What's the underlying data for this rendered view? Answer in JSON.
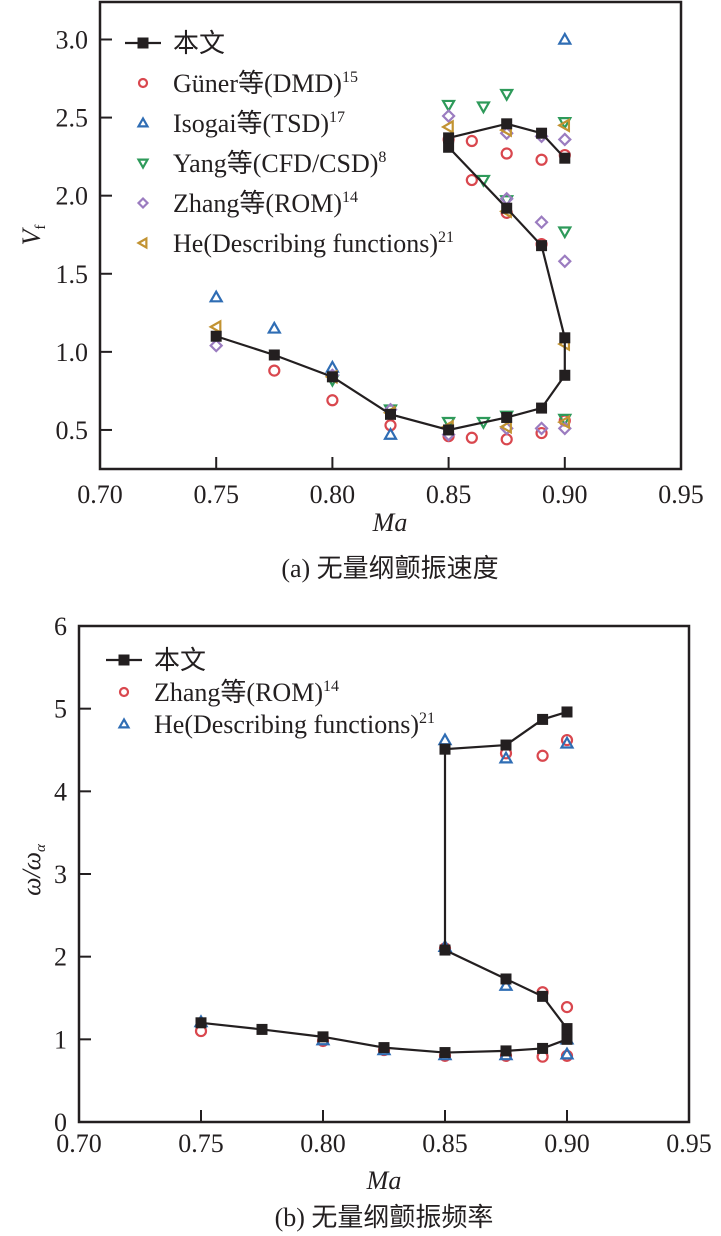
{
  "colors": {
    "main": "#231f20",
    "guner": "#d9474e",
    "isogai": "#2f6db4",
    "yang": "#2e9a5a",
    "zhang": "#9b7cc0",
    "he": "#c29332",
    "zhang_b": "#d9474e",
    "he_b": "#2f6db4"
  },
  "chart_data": [
    {
      "type": "scatter",
      "title": "(a) 无量纲颤振速度",
      "xlabel": "Ma",
      "ylabel": "V",
      "ylabel_sub": "f",
      "xlim": [
        0.7,
        0.95
      ],
      "ylim": [
        0.25,
        3.24
      ],
      "xticks": [
        "0.70",
        "0.75",
        "0.80",
        "0.85",
        "0.90",
        "0.95"
      ],
      "xtick_values": [
        0.7,
        0.75,
        0.8,
        0.85,
        0.9,
        0.95
      ],
      "yticks": [
        "0.5",
        "1.0",
        "1.5",
        "2.0",
        "2.5",
        "3.0"
      ],
      "ytick_values": [
        0.5,
        1.0,
        1.5,
        2.0,
        2.5,
        3.0
      ],
      "legend_position": "top-left",
      "series": [
        {
          "key": "main",
          "name": "本文",
          "sup": "",
          "marker": "square",
          "line": true,
          "segments": [
            [
              [
                0.75,
                1.1
              ],
              [
                0.775,
                0.98
              ],
              [
                0.8,
                0.84
              ],
              [
                0.825,
                0.6
              ],
              [
                0.85,
                0.5
              ],
              [
                0.875,
                0.58
              ],
              [
                0.89,
                0.64
              ],
              [
                0.9,
                0.85
              ],
              [
                0.9,
                1.09
              ],
              [
                0.89,
                1.68
              ],
              [
                0.875,
                1.92
              ],
              [
                0.85,
                2.31
              ]
            ],
            [
              [
                0.85,
                2.37
              ],
              [
                0.875,
                2.46
              ],
              [
                0.89,
                2.4
              ],
              [
                0.9,
                2.24
              ]
            ]
          ]
        },
        {
          "key": "guner",
          "name": "Güner等(DMD)",
          "sup": "15",
          "marker": "circle",
          "points": [
            [
              0.775,
              0.88
            ],
            [
              0.8,
              0.69
            ],
            [
              0.825,
              0.53
            ],
            [
              0.85,
              0.46
            ],
            [
              0.86,
              0.45
            ],
            [
              0.875,
              0.44
            ],
            [
              0.89,
              0.48
            ],
            [
              0.9,
              0.56
            ],
            [
              0.86,
              2.1
            ],
            [
              0.875,
              2.27
            ],
            [
              0.89,
              2.23
            ],
            [
              0.9,
              2.26
            ],
            [
              0.86,
              2.35
            ],
            [
              0.875,
              1.89
            ],
            [
              0.89,
              1.69
            ],
            [
              0.85,
              2.36
            ]
          ]
        },
        {
          "key": "isogai",
          "name": "Isogai等(TSD)",
          "sup": "17",
          "marker": "triangle-up",
          "points": [
            [
              0.75,
              1.35
            ],
            [
              0.775,
              1.15
            ],
            [
              0.8,
              0.9
            ],
            [
              0.825,
              0.47
            ],
            [
              0.9,
              3.0
            ]
          ]
        },
        {
          "key": "yang",
          "name": "Yang等(CFD/CSD)",
          "sup": "8",
          "marker": "triangle-down",
          "points": [
            [
              0.8,
              0.82
            ],
            [
              0.825,
              0.63
            ],
            [
              0.85,
              0.55
            ],
            [
              0.865,
              0.55
            ],
            [
              0.875,
              0.59
            ],
            [
              0.9,
              0.57
            ],
            [
              0.85,
              2.58
            ],
            [
              0.865,
              2.57
            ],
            [
              0.875,
              2.65
            ],
            [
              0.865,
              2.1
            ],
            [
              0.875,
              1.97
            ],
            [
              0.9,
              1.77
            ],
            [
              0.9,
              2.47
            ]
          ]
        },
        {
          "key": "zhang",
          "name": "Zhang等(ROM)",
          "sup": "14",
          "marker": "diamond",
          "points": [
            [
              0.75,
              1.04
            ],
            [
              0.8,
              0.85
            ],
            [
              0.825,
              0.63
            ],
            [
              0.85,
              0.47
            ],
            [
              0.875,
              0.51
            ],
            [
              0.89,
              0.51
            ],
            [
              0.9,
              0.51
            ],
            [
              0.85,
              2.51
            ],
            [
              0.875,
              2.4
            ],
            [
              0.89,
              2.38
            ],
            [
              0.9,
              2.36
            ],
            [
              0.875,
              1.98
            ],
            [
              0.89,
              1.83
            ],
            [
              0.9,
              1.58
            ]
          ]
        },
        {
          "key": "he",
          "name": "He(Describing functions)",
          "sup": "21",
          "marker": "triangle-left",
          "points": [
            [
              0.75,
              1.16
            ],
            [
              0.8,
              0.84
            ],
            [
              0.825,
              0.61
            ],
            [
              0.85,
              0.52
            ],
            [
              0.875,
              0.52
            ],
            [
              0.9,
              0.55
            ],
            [
              0.9,
              1.05
            ],
            [
              0.85,
              2.44
            ],
            [
              0.875,
              2.42
            ],
            [
              0.9,
              2.45
            ],
            [
              0.875,
              1.9
            ]
          ]
        }
      ]
    },
    {
      "type": "scatter",
      "title": "(b) 无量纲颤振频率",
      "xlabel": "Ma",
      "ylabel": "ω/ω",
      "ylabel_sub": "α",
      "xlim": [
        0.7,
        0.95
      ],
      "ylim": [
        0,
        6
      ],
      "xticks": [
        "0.70",
        "0.75",
        "0.80",
        "0.85",
        "0.90",
        "0.95"
      ],
      "xtick_values": [
        0.7,
        0.75,
        0.8,
        0.85,
        0.9,
        0.95
      ],
      "yticks": [
        "0",
        "1",
        "2",
        "3",
        "4",
        "5",
        "6"
      ],
      "ytick_values": [
        0,
        1,
        2,
        3,
        4,
        5,
        6
      ],
      "legend_position": "top-left",
      "series": [
        {
          "key": "main",
          "name": "本文",
          "sup": "",
          "marker": "square",
          "line": true,
          "segments": [
            [
              [
                0.75,
                1.2
              ],
              [
                0.775,
                1.12
              ],
              [
                0.8,
                1.03
              ],
              [
                0.825,
                0.9
              ],
              [
                0.85,
                0.84
              ],
              [
                0.875,
                0.86
              ],
              [
                0.89,
                0.89
              ],
              [
                0.9,
                1.0
              ],
              [
                0.9,
                1.13
              ],
              [
                0.89,
                1.52
              ],
              [
                0.875,
                1.73
              ],
              [
                0.85,
                2.08
              ],
              [
                0.85,
                4.51
              ],
              [
                0.875,
                4.56
              ],
              [
                0.89,
                4.87
              ],
              [
                0.9,
                4.96
              ]
            ]
          ]
        },
        {
          "key": "zhang_b",
          "name": "Zhang等(ROM)",
          "sup": "14",
          "marker": "circle",
          "points": [
            [
              0.75,
              1.1
            ],
            [
              0.8,
              0.98
            ],
            [
              0.825,
              0.87
            ],
            [
              0.85,
              0.8
            ],
            [
              0.875,
              0.8
            ],
            [
              0.89,
              0.79
            ],
            [
              0.9,
              0.8
            ],
            [
              0.89,
              1.57
            ],
            [
              0.9,
              1.39
            ],
            [
              0.875,
              4.46
            ],
            [
              0.89,
              4.43
            ],
            [
              0.9,
              4.62
            ],
            [
              0.85,
              2.1
            ]
          ]
        },
        {
          "key": "he_b",
          "name": "He(Describing functions)",
          "sup": "21",
          "marker": "triangle-up",
          "points": [
            [
              0.75,
              1.21
            ],
            [
              0.8,
              0.99
            ],
            [
              0.825,
              0.87
            ],
            [
              0.85,
              0.81
            ],
            [
              0.875,
              0.81
            ],
            [
              0.9,
              0.82
            ],
            [
              0.9,
              1.0
            ],
            [
              0.875,
              1.65
            ],
            [
              0.85,
              2.12
            ],
            [
              0.85,
              4.62
            ],
            [
              0.875,
              4.4
            ],
            [
              0.9,
              4.58
            ]
          ]
        }
      ]
    }
  ]
}
